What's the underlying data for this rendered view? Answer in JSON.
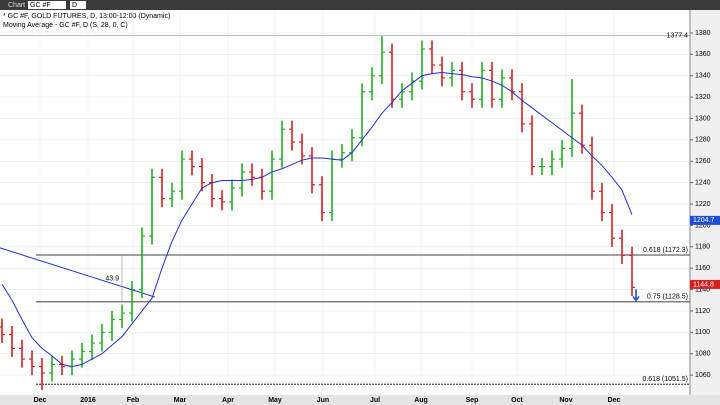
{
  "toolbar": {
    "label": "Chart",
    "symbol": "GC #F",
    "interval": "D"
  },
  "chart_data": {
    "type": "ohlc",
    "legend": [
      "* GC #F, GOLD FUTURES, D, 13:00-12:00 (Dynamic)",
      "Moving Average - GC #F, D (S, 28, 0, C)"
    ],
    "up_color": "#22b022",
    "down_color": "#d42020",
    "open": [
      1105,
      1098,
      1085,
      1075,
      1068,
      1062,
      1070,
      1068,
      1075,
      1082,
      1090,
      1100,
      1112,
      1118,
      1140,
      1190,
      1245,
      1225,
      1232,
      1262,
      1255,
      1240,
      1225,
      1222,
      1235,
      1250,
      1245,
      1232,
      1262,
      1290,
      1278,
      1265,
      1238,
      1212,
      1262,
      1268,
      1282,
      1325,
      1340,
      1362,
      1318,
      1325,
      1335,
      1365,
      1350,
      1338,
      1345,
      1325,
      1318,
      1345,
      1318,
      1338,
      1325,
      1295,
      1255,
      1255,
      1262,
      1272,
      1305,
      1275,
      1232,
      1212,
      1188,
      1172
    ],
    "high": [
      1113,
      1106,
      1093,
      1083,
      1076,
      1078,
      1078,
      1083,
      1090,
      1098,
      1108,
      1120,
      1126,
      1148,
      1198,
      1253,
      1253,
      1240,
      1270,
      1270,
      1263,
      1248,
      1233,
      1243,
      1258,
      1258,
      1253,
      1270,
      1298,
      1298,
      1286,
      1273,
      1246,
      1270,
      1276,
      1290,
      1333,
      1348,
      1377,
      1370,
      1333,
      1343,
      1373,
      1373,
      1358,
      1353,
      1353,
      1333,
      1353,
      1353,
      1346,
      1346,
      1333,
      1303,
      1263,
      1270,
      1280,
      1337,
      1313,
      1283,
      1240,
      1220,
      1196,
      1180
    ],
    "low": [
      1090,
      1077,
      1067,
      1060,
      1046,
      1054,
      1060,
      1060,
      1067,
      1074,
      1082,
      1092,
      1104,
      1110,
      1132,
      1182,
      1217,
      1217,
      1224,
      1247,
      1232,
      1217,
      1214,
      1214,
      1227,
      1237,
      1224,
      1224,
      1254,
      1270,
      1257,
      1230,
      1204,
      1204,
      1254,
      1260,
      1274,
      1317,
      1332,
      1310,
      1310,
      1317,
      1327,
      1342,
      1330,
      1330,
      1317,
      1310,
      1310,
      1310,
      1310,
      1317,
      1287,
      1247,
      1247,
      1247,
      1254,
      1264,
      1267,
      1224,
      1204,
      1180,
      1164,
      1134
    ],
    "close": [
      1098,
      1085,
      1075,
      1068,
      1062,
      1070,
      1068,
      1075,
      1082,
      1090,
      1100,
      1112,
      1118,
      1140,
      1190,
      1245,
      1225,
      1232,
      1262,
      1255,
      1240,
      1225,
      1222,
      1235,
      1250,
      1245,
      1232,
      1262,
      1290,
      1278,
      1265,
      1238,
      1212,
      1262,
      1268,
      1282,
      1325,
      1340,
      1362,
      1318,
      1325,
      1335,
      1365,
      1350,
      1338,
      1345,
      1325,
      1318,
      1345,
      1318,
      1338,
      1325,
      1295,
      1255,
      1255,
      1262,
      1272,
      1305,
      1275,
      1232,
      1212,
      1188,
      1172,
      1142
    ],
    "moving_average": {
      "color": "#2030d0",
      "values": [
        1145,
        1130,
        1112,
        1095,
        1085,
        1078,
        1070,
        1068,
        1070,
        1075,
        1080,
        1088,
        1096,
        1108,
        1120,
        1132,
        1160,
        1185,
        1205,
        1220,
        1235,
        1240,
        1242,
        1242,
        1242,
        1243,
        1245,
        1250,
        1253,
        1257,
        1261,
        1263,
        1263,
        1262,
        1261,
        1268,
        1280,
        1292,
        1305,
        1315,
        1326,
        1333,
        1340,
        1342,
        1343,
        1342,
        1341,
        1339,
        1338,
        1335,
        1331,
        1325,
        1317,
        1310,
        1303,
        1296,
        1289,
        1282,
        1275,
        1265,
        1256,
        1245,
        1233,
        1210
      ]
    },
    "xlim": [
      -0.2,
      68.8
    ],
    "xticks": [
      {
        "value": 3.8,
        "label": "Dec"
      },
      {
        "value": 8.6,
        "label": "2016"
      },
      {
        "value": 13.1,
        "label": "Feb"
      },
      {
        "value": 17.8,
        "label": "Mar"
      },
      {
        "value": 22.6,
        "label": "Apr"
      },
      {
        "value": 27.3,
        "label": "May"
      },
      {
        "value": 32.1,
        "label": "Jun"
      },
      {
        "value": 37.3,
        "label": "Jul"
      },
      {
        "value": 41.9,
        "label": "Aug"
      },
      {
        "value": 47,
        "label": "Sep"
      },
      {
        "value": 51.5,
        "label": "Oct"
      },
      {
        "value": 56.4,
        "label": "Nov"
      },
      {
        "value": 61.2,
        "label": "Dec"
      }
    ],
    "ylim": [
      1041.4,
      1399.6
    ],
    "yticks": [
      1060,
      1080,
      1100,
      1120,
      1140,
      1160,
      1180,
      1200,
      1220,
      1240,
      1260,
      1280,
      1300,
      1320,
      1340,
      1360,
      1380
    ],
    "grid": true,
    "high_line": 1377.4,
    "levels": [
      {
        "label": "0.618 (1172.3)",
        "value": 1172.3,
        "dashed": false
      },
      {
        "label": "0.75 (1128.5)",
        "value": 1128.5,
        "dashed": false
      },
      {
        "label": "0.618 (1051.5)",
        "value": 1051.5,
        "dashed": true
      }
    ],
    "trendline": {
      "x": [
        -0.2,
        15.3
      ],
      "y": [
        1179,
        1133
      ]
    },
    "measure": {
      "text": "43.9",
      "x": 12
    },
    "price_tags": [
      {
        "value": 1204.7,
        "color": "#1f4fd6"
      },
      {
        "value": 1144.8,
        "color": "#d62020"
      }
    ]
  }
}
